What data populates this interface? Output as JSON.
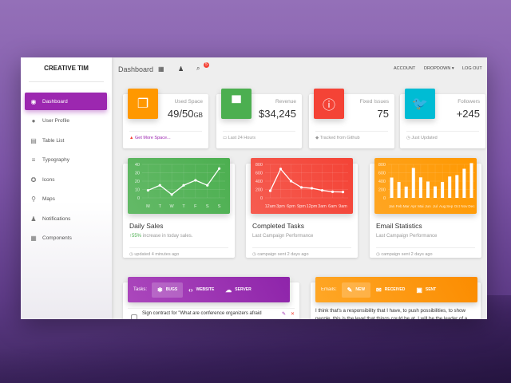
{
  "brand": "CREATIVE TIM",
  "sidebar": {
    "items": [
      {
        "label": "Dashboard",
        "icon": "dashboard-icon",
        "glyph": "◉",
        "active": true
      },
      {
        "label": "User Profile",
        "icon": "person-icon",
        "glyph": "●"
      },
      {
        "label": "Table List",
        "icon": "content-paste-icon",
        "glyph": "▤"
      },
      {
        "label": "Typography",
        "icon": "text-format-icon",
        "glyph": "≡"
      },
      {
        "label": "Icons",
        "icon": "bubble-chart-icon",
        "glyph": "✪"
      },
      {
        "label": "Maps",
        "icon": "location-icon",
        "glyph": "⚲"
      },
      {
        "label": "Notifications",
        "icon": "bell-icon",
        "glyph": "♟"
      },
      {
        "label": "Components",
        "icon": "apps-icon",
        "glyph": "▦"
      }
    ]
  },
  "topbar": {
    "title": "Dashboard",
    "notif_count": "5",
    "links": [
      "ACCOUNT",
      "DROPDOWN ▾",
      "LOG OUT"
    ]
  },
  "stats": [
    {
      "category": "Used Space",
      "value": "49/50",
      "unit": "GB",
      "footer": "Get More Space...",
      "footer_icon": "warning-icon",
      "icon": "copy-icon",
      "glyph": "❐",
      "color": "#ff9800"
    },
    {
      "category": "Revenue",
      "value": "$34,245",
      "unit": "",
      "footer": "Last 24 Hours",
      "footer_icon": "calendar-icon",
      "icon": "store-icon",
      "glyph": "▀",
      "color": "#4caf50"
    },
    {
      "category": "Fixed Issues",
      "value": "75",
      "unit": "",
      "footer": "Tracked from Github",
      "footer_icon": "tag-icon",
      "icon": "info-icon",
      "glyph": "ⓘ",
      "color": "#f44336"
    },
    {
      "category": "Followers",
      "value": "+245",
      "unit": "",
      "footer": "Just Updated",
      "footer_icon": "update-icon",
      "icon": "twitter-icon",
      "glyph": "🐦",
      "color": "#00bcd4"
    }
  ],
  "chart_data": [
    {
      "type": "line",
      "title": "Daily Sales",
      "categories": [
        "M",
        "T",
        "W",
        "T",
        "F",
        "S",
        "S"
      ],
      "values": [
        9,
        15,
        4,
        15,
        21,
        15,
        35
      ],
      "ylim": [
        0,
        40
      ],
      "yticks": [
        0,
        10,
        20,
        30,
        40
      ],
      "grid": true,
      "color": "#4caf50"
    },
    {
      "type": "line",
      "title": "Completed Tasks",
      "categories": [
        "12am",
        "3pm",
        "6pm",
        "9pm",
        "12pm",
        "3am",
        "6am",
        "9am"
      ],
      "values": [
        170,
        690,
        400,
        250,
        230,
        180,
        145,
        140
      ],
      "ylim": [
        0,
        800
      ],
      "yticks": [
        0,
        200,
        400,
        600,
        800
      ],
      "grid": true,
      "color": "#f44336"
    },
    {
      "type": "bar",
      "title": "Email Statistics",
      "categories": [
        "Jan",
        "Feb",
        "Mar",
        "Apr",
        "Mai",
        "Jun",
        "Jul",
        "Aug",
        "Sep",
        "Oct",
        "Nov",
        "Dec"
      ],
      "values": [
        485,
        380,
        270,
        715,
        490,
        390,
        275,
        380,
        510,
        545,
        695,
        830
      ],
      "ylim": [
        0,
        800
      ],
      "yticks": [
        0,
        200,
        400,
        600,
        800
      ],
      "grid": true,
      "color": "#ff9800"
    }
  ],
  "chart_cards": [
    {
      "title": "Daily Sales",
      "sub_highlight": "55%",
      "sub": " increase in today sales.",
      "footer": "updated 4 minutes ago"
    },
    {
      "title": "Completed Tasks",
      "sub": "Last Campaign Performance",
      "footer": "campaign sent 2 days ago"
    },
    {
      "title": "Email Statistics",
      "sub": "Last Campaign Performance",
      "footer": "campaign sent 2 days ago"
    }
  ],
  "tasks": {
    "label": "Tasks:",
    "tabs": [
      {
        "label": "BUGS",
        "icon": "bug-icon",
        "glyph": "✱",
        "active": true
      },
      {
        "label": "WEBSITE",
        "icon": "code-icon",
        "glyph": "‹›"
      },
      {
        "label": "SERVER",
        "icon": "cloud-icon",
        "glyph": "☁"
      }
    ],
    "items": [
      "Sign contract for \"What are conference organizers afraid"
    ]
  },
  "emails": {
    "label": "Emails:",
    "tabs": [
      {
        "label": "NEW",
        "icon": "edit-icon",
        "glyph": "✎",
        "active": true
      },
      {
        "label": "RECEIVED",
        "icon": "mail-icon",
        "glyph": "✉"
      },
      {
        "label": "SENT",
        "icon": "forum-icon",
        "glyph": "▣"
      }
    ],
    "text": "I think that's a responsibility that I have, to push possibilities, to show people, this is the level that things could be at. I will be the leader of a"
  }
}
